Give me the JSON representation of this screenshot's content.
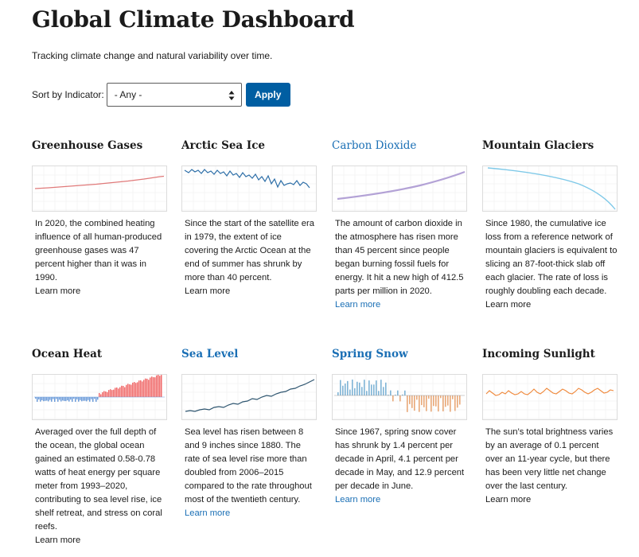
{
  "header": {
    "title": "Global Climate Dashboard",
    "subtitle": "Tracking climate change and natural variability over time."
  },
  "sort": {
    "label": "Sort by Indicator:",
    "selected": "- Any -",
    "apply_label": "Apply"
  },
  "colors": {
    "apply_button": "#005ea2",
    "link": "#1a6fb5",
    "greenhouse_line": "#e07a7a",
    "arctic_line": "#2e6fa8",
    "co2_line": "#b3a2d6",
    "glacier_line": "#7fc9e8",
    "ocean_warm": "#f06a6a",
    "ocean_cool": "#6b9bd9",
    "sea_level_line": "#2f5670",
    "snow_above": "#7fb4d6",
    "snow_below": "#e8a878",
    "sunlight_line": "#f0883a"
  },
  "cards": [
    {
      "title": "Greenhouse Gases",
      "chart_icon": "greenhouse-gases-trend",
      "description": "In 2020, the combined heating influence of all human-produced greenhouse gases was 47 percent higher than it was in 1990.",
      "learn_more": "Learn more"
    },
    {
      "title": "Arctic Sea Ice",
      "chart_icon": "arctic-sea-ice-trend",
      "description": "Since the start of the satellite era in 1979, the extent of ice covering the Arctic Ocean at the end of summer has shrunk by more than 40 percent.",
      "learn_more": "Learn more"
    },
    {
      "title": "Carbon Dioxide",
      "chart_icon": "carbon-dioxide-trend",
      "description": "The amount of carbon dioxide in the atmosphere has risen more than 45 percent since people began burning fossil fuels for energy. It hit a new high of 412.5 parts per million in 2020.",
      "learn_more": "Learn more"
    },
    {
      "title": "Mountain Glaciers",
      "chart_icon": "mountain-glaciers-trend",
      "description": "Since 1980, the cumulative ice loss from a reference network of mountain glaciers is equivalent to slicing an 87-foot-thick slab off each glacier. The rate of loss is roughly doubling each decade.",
      "learn_more": "Learn more"
    },
    {
      "title": "Ocean Heat",
      "chart_icon": "ocean-heat-trend",
      "description": "Averaged over the full depth of the ocean, the global ocean gained an estimated 0.58-0.78 watts of heat energy per square meter from 1993–2020, contributing to sea level rise, ice shelf retreat, and stress on coral reefs.",
      "learn_more": "Learn more"
    },
    {
      "title": "Sea Level",
      "chart_icon": "sea-level-trend",
      "description": "Sea level has risen between 8 and 9 inches since 1880. The rate of sea level rise more than doubled from 2006–2015 compared to the rate throughout most of the twentieth century.",
      "learn_more": "Learn more"
    },
    {
      "title": "Spring Snow",
      "chart_icon": "spring-snow-trend",
      "description": "Since 1967, spring snow cover has shrunk by 1.4 percent per decade in April, 4.1 percent per decade in May, and 12.9 percent per decade in June.",
      "learn_more": "Learn more"
    },
    {
      "title": "Incoming Sunlight",
      "chart_icon": "incoming-sunlight-trend",
      "description": "The sun’s total brightness varies by an average of 0.1 percent over an 11-year cycle, but there has been very little net change over the last century.",
      "learn_more": "Learn more"
    }
  ]
}
